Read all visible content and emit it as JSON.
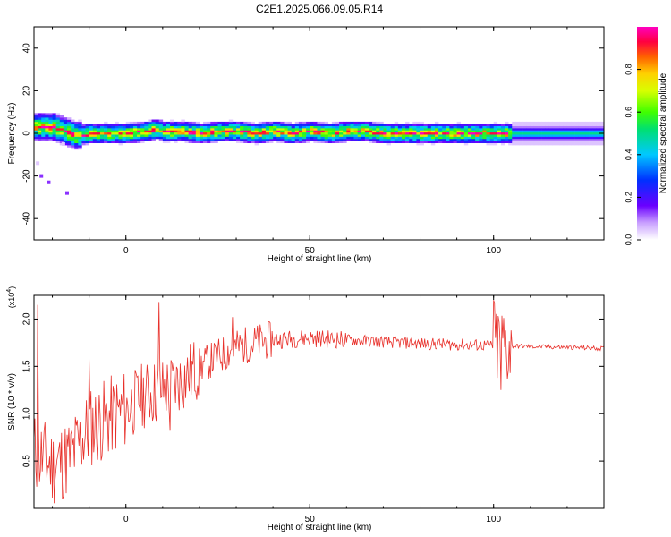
{
  "title": "C2E1.2025.066.09.05.R14",
  "chart_data": [
    {
      "type": "heatmap",
      "xlabel": "Height of straight line (km)",
      "ylabel": "Frequency (Hz)",
      "xlim": [
        -25,
        130
      ],
      "ylim": [
        -50,
        50
      ],
      "xticks": [
        0,
        50,
        100
      ],
      "yticks": [
        -40,
        -20,
        0,
        20,
        40
      ],
      "colorbar": {
        "label": "Normalized spectral amplitude",
        "range": [
          0,
          1
        ],
        "ticks": [
          0.0,
          0.2,
          0.4,
          0.6,
          0.8
        ],
        "colormap": "rainbow"
      },
      "ridge": {
        "center_frequency": [
          [
            -25,
            3
          ],
          [
            -20,
            3
          ],
          [
            -17,
            1
          ],
          [
            -14,
            -1
          ],
          [
            -10,
            0
          ],
          [
            -5,
            0
          ],
          [
            0,
            0
          ],
          [
            5,
            1
          ],
          [
            8,
            2
          ],
          [
            10,
            1
          ],
          [
            15,
            1
          ],
          [
            20,
            0
          ],
          [
            25,
            1
          ],
          [
            30,
            1
          ],
          [
            35,
            0
          ],
          [
            40,
            1
          ],
          [
            45,
            0
          ],
          [
            50,
            1
          ],
          [
            55,
            0
          ],
          [
            60,
            1
          ],
          [
            65,
            1
          ],
          [
            70,
            0
          ],
          [
            80,
            0
          ],
          [
            90,
            0
          ],
          [
            100,
            0
          ],
          [
            103,
            0
          ],
          [
            110,
            0
          ],
          [
            130,
            0
          ]
        ],
        "note_bandwidth_hz": 5
      },
      "scatter_points": [
        [
          -17,
          -5
        ],
        [
          -24,
          -14
        ],
        [
          -23,
          -20
        ],
        [
          -21,
          -23
        ],
        [
          -16,
          -28
        ]
      ]
    },
    {
      "type": "line",
      "xlabel": "Height of straight line (km)",
      "ylabel": "SNR (10 * v/v)",
      "y_multiplier": "(x10",
      "y_multiplier_exp": "4",
      "y_multiplier_close": ")",
      "xlim": [
        -25,
        130
      ],
      "ylim": [
        0.0,
        2.25
      ],
      "xticks": [
        0,
        50,
        100
      ],
      "yticks": [
        0.5,
        1.0,
        1.5,
        2.0
      ],
      "color": "#e8302a",
      "trend": [
        [
          -25,
          0.6
        ],
        [
          -20,
          0.45
        ],
        [
          -15,
          0.55
        ],
        [
          -10,
          0.85
        ],
        [
          -5,
          0.95
        ],
        [
          0,
          1.05
        ],
        [
          5,
          1.2
        ],
        [
          10,
          1.25
        ],
        [
          15,
          1.35
        ],
        [
          20,
          1.5
        ],
        [
          25,
          1.6
        ],
        [
          30,
          1.7
        ],
        [
          35,
          1.75
        ],
        [
          40,
          1.78
        ],
        [
          50,
          1.8
        ],
        [
          60,
          1.78
        ],
        [
          70,
          1.76
        ],
        [
          80,
          1.74
        ],
        [
          90,
          1.73
        ],
        [
          100,
          1.72
        ],
        [
          110,
          1.71
        ],
        [
          120,
          1.7
        ],
        [
          130,
          1.69
        ]
      ],
      "spikes": [
        [
          -24,
          2.15
        ],
        [
          -10,
          1.58
        ],
        [
          9,
          2.18
        ],
        [
          12,
          0.82
        ],
        [
          29,
          2.02
        ],
        [
          100,
          2.2
        ],
        [
          102,
          1.25
        ]
      ]
    }
  ]
}
